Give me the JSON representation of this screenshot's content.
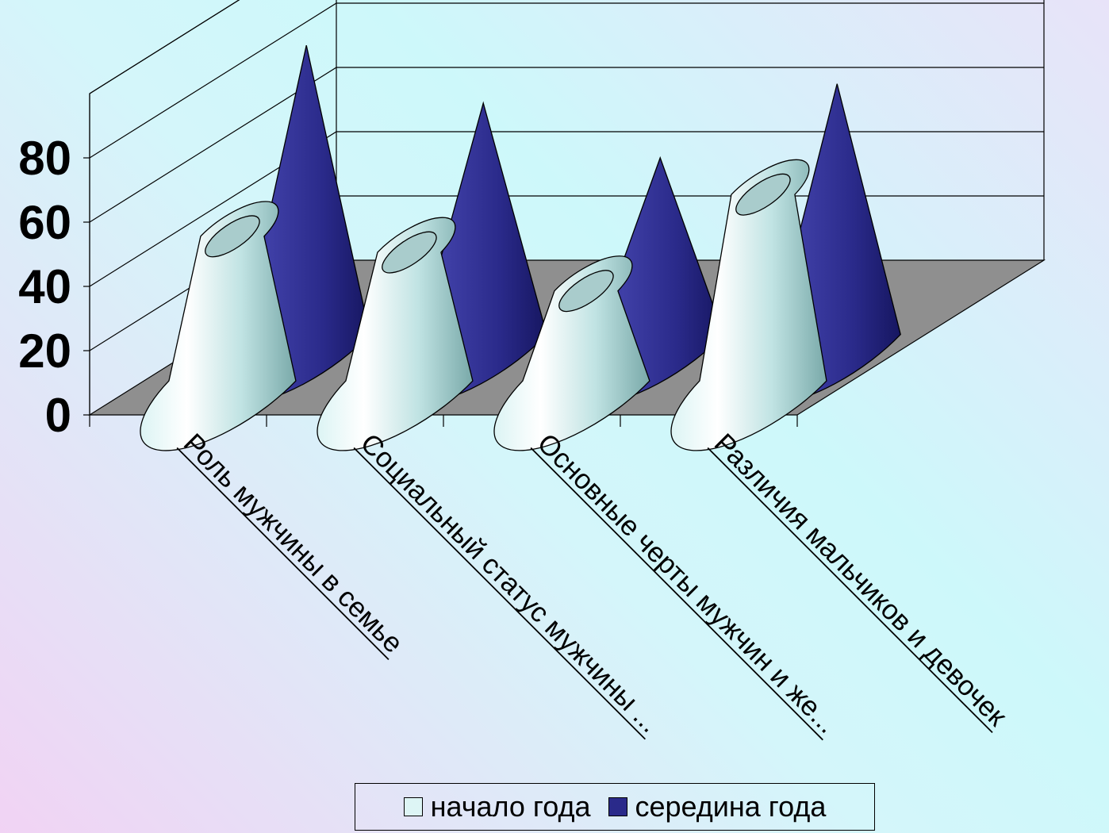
{
  "colors": {
    "series1": "#c9ecec",
    "series2": "#2a2a8a",
    "floor": "#8f8f8f",
    "grid": "#000000"
  },
  "chart_data": {
    "type": "bar",
    "style": "3d-cone",
    "categories": [
      "Роль мужчины в семье",
      "Социальный статус мужчины ...",
      "Основные черты мужчин и же...",
      "Различия мальчиков и девочек"
    ],
    "series": [
      {
        "name": "начало года",
        "values": [
          45,
          40,
          28,
          58
        ],
        "color": "#c9ecec"
      },
      {
        "name": "середина года",
        "values": [
          90,
          72,
          55,
          78
        ],
        "color": "#2a2a8a"
      }
    ],
    "yticks": [
      0,
      20,
      40,
      60,
      80
    ],
    "ylim": [
      0,
      100
    ],
    "grid": true,
    "legend": "bottom"
  }
}
